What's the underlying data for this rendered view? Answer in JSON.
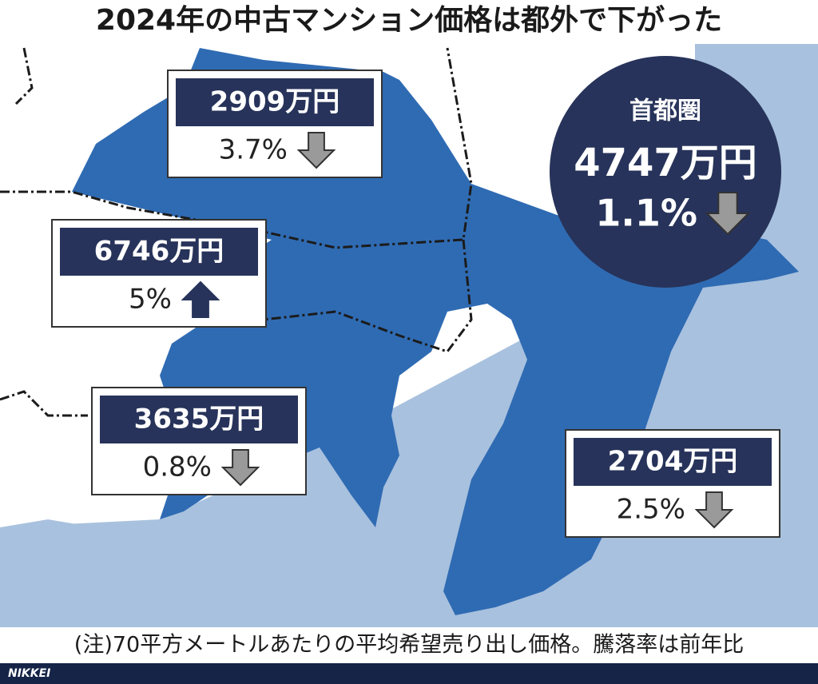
{
  "title": "2024年の中古マンション価格は都外で下がった",
  "summary": {
    "label": "首都圏",
    "price": "4747万円",
    "change": "1.1%",
    "direction": "down"
  },
  "callouts": [
    {
      "price": "2909万円",
      "change": "3.7%",
      "direction": "down"
    },
    {
      "price": "6746万円",
      "change": "5%",
      "direction": "up"
    },
    {
      "price": "3635万円",
      "change": "0.8%",
      "direction": "down"
    },
    {
      "price": "2704万円",
      "change": "2.5%",
      "direction": "down"
    }
  ],
  "note": "(注)70平方メートルあたりの平均希望売り出し価格。騰落率は前年比",
  "source": "NIKKEI"
}
